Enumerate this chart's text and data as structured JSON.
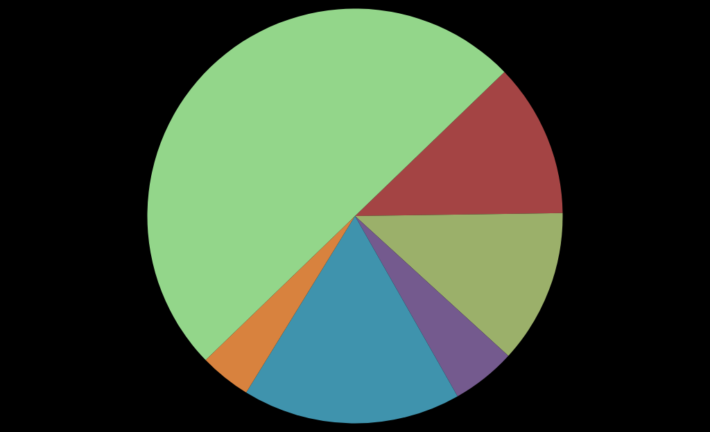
{
  "chart_data": {
    "type": "pie",
    "categories": [
      null,
      null,
      null,
      null,
      null,
      null
    ],
    "values": [
      12,
      12,
      5,
      17,
      4,
      50
    ],
    "colors": [
      "#a44444",
      "#9bb06a",
      "#745a8e",
      "#3f93ad",
      "#d8823e",
      "#93d68a"
    ]
  }
}
